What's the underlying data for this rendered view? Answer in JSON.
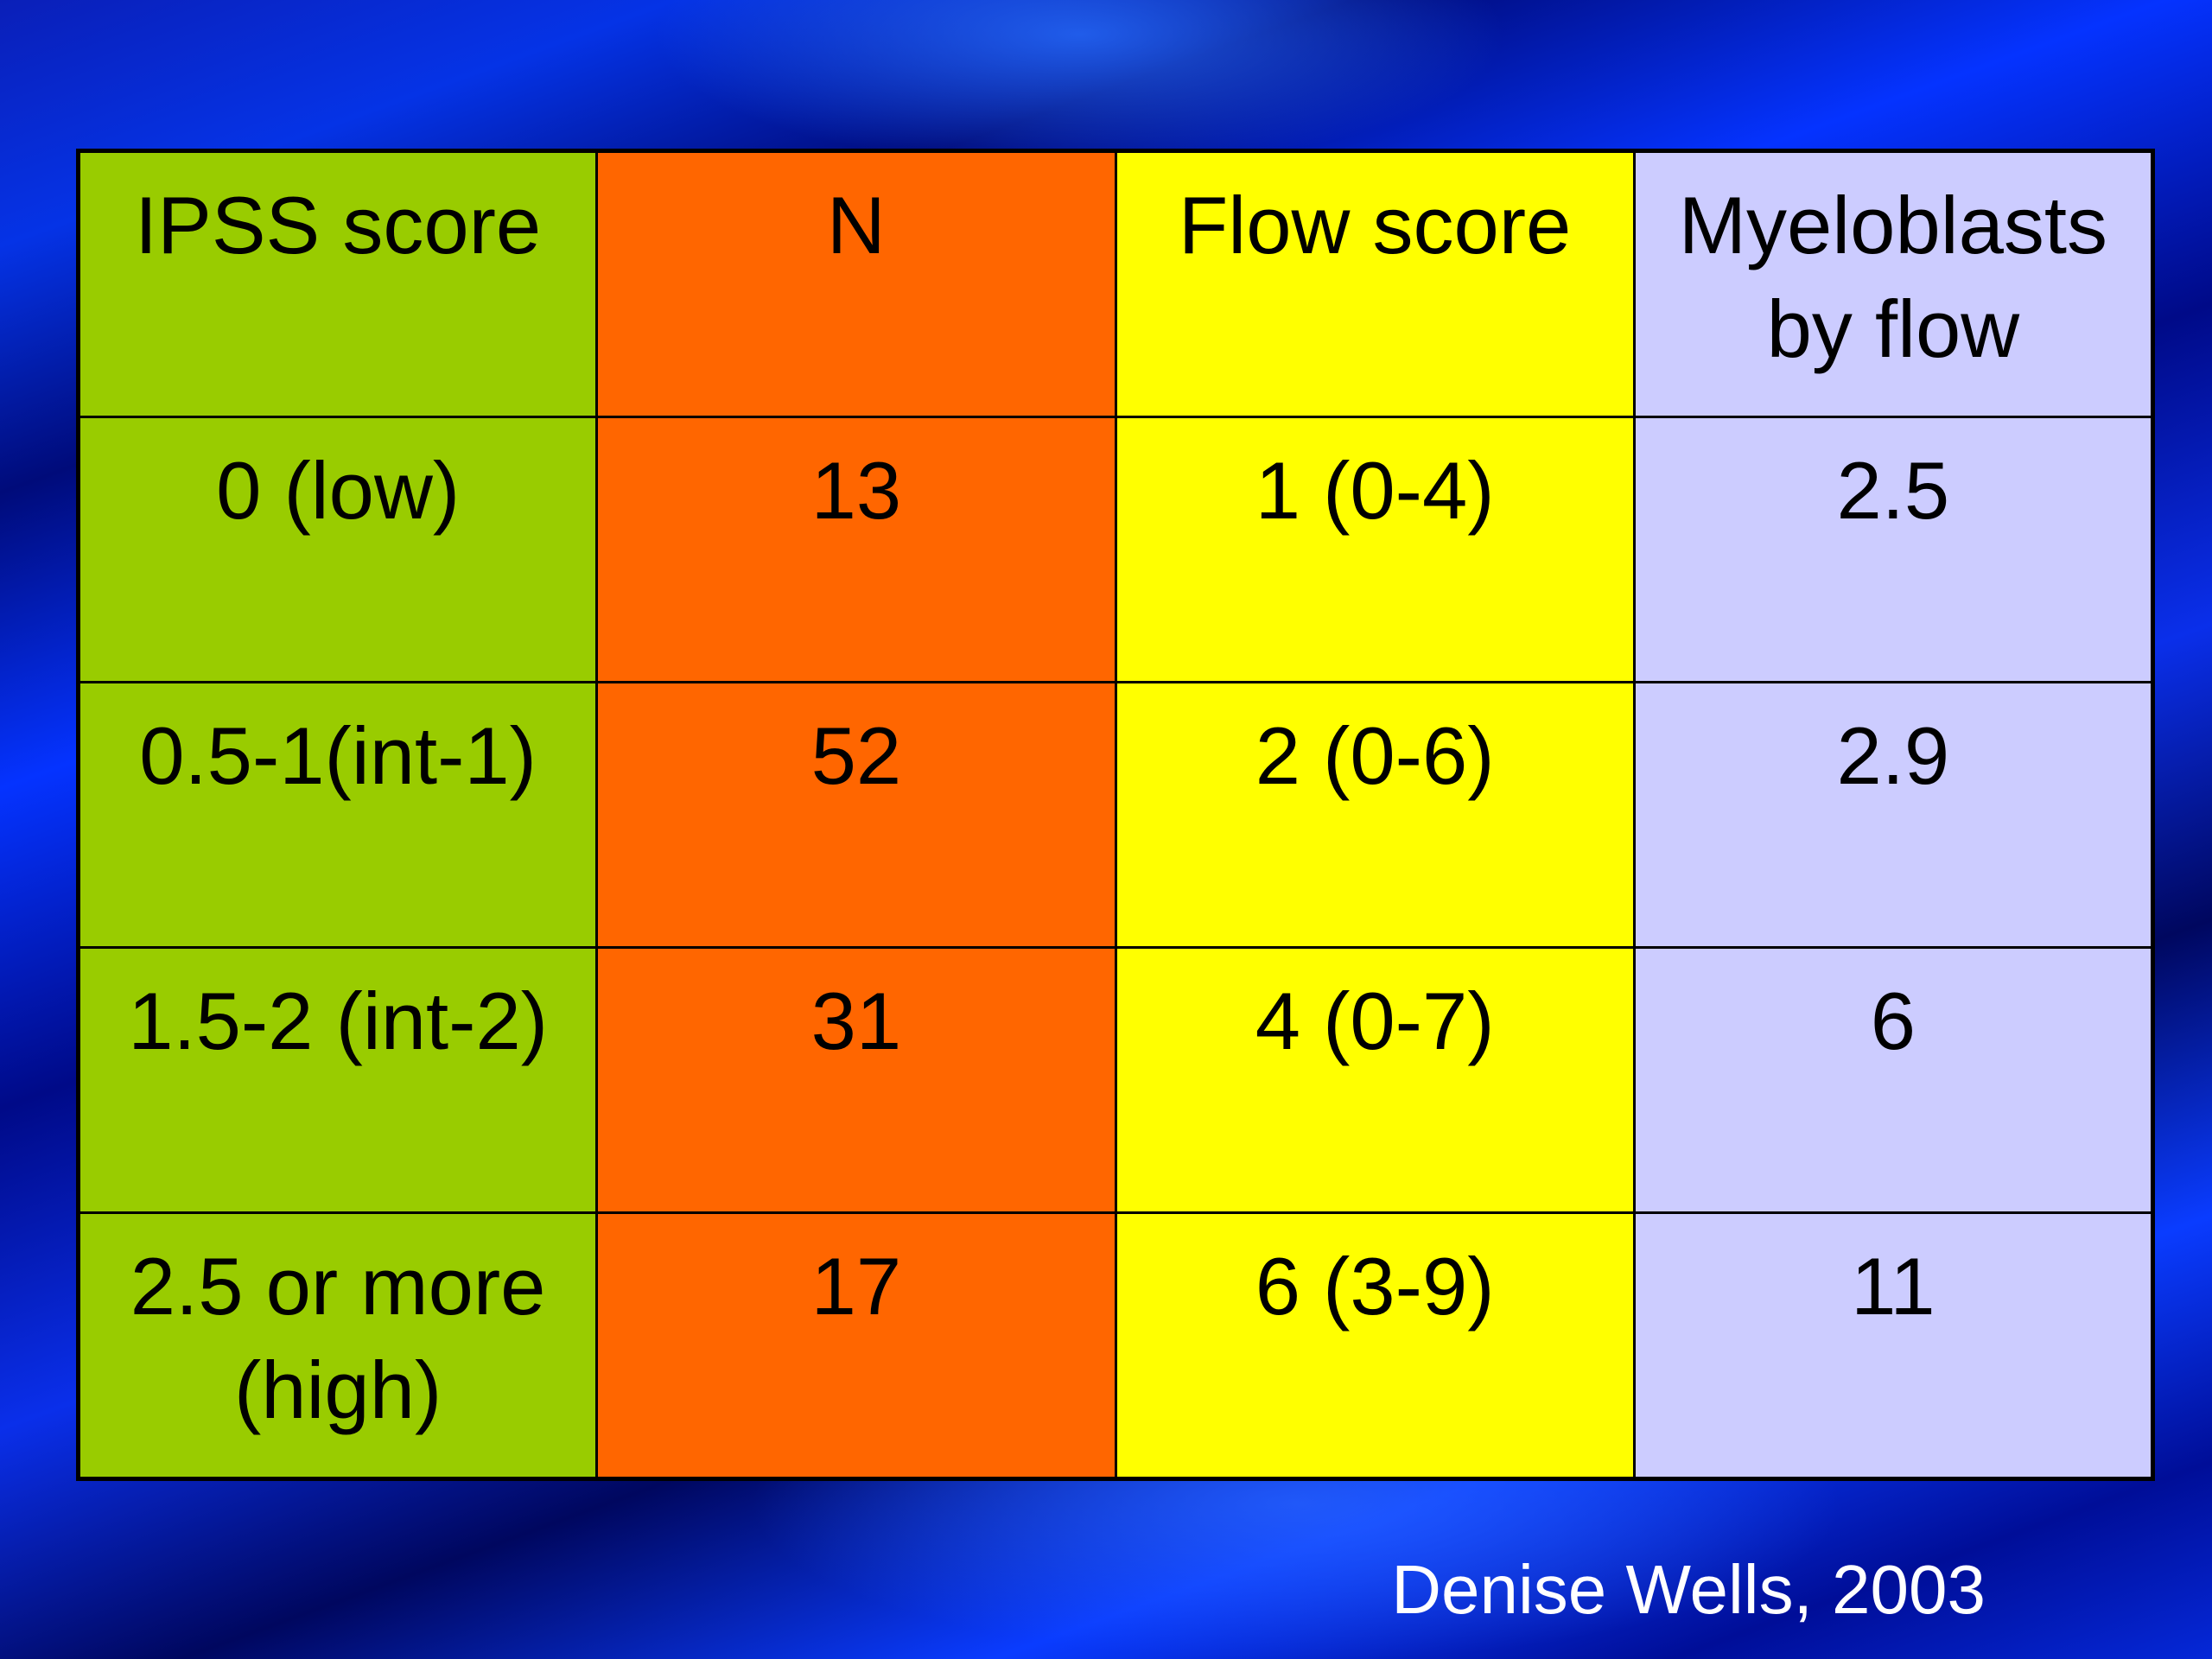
{
  "table": {
    "headers": [
      "IPSS score",
      "N",
      "Flow score",
      "Myeloblasts by flow"
    ],
    "rows": [
      [
        "0 (low)",
        "13",
        "1 (0-4)",
        "2.5"
      ],
      [
        "0.5-1(int-1)",
        "52",
        "2 (0-6)",
        "2.9"
      ],
      [
        "1.5-2 (int-2)",
        "31",
        "4 (0-7)",
        "6"
      ],
      [
        "2.5 or more (high)",
        "17",
        "6 (3-9)",
        "11"
      ]
    ],
    "column_colors": [
      "#99cc00",
      "#ff6600",
      "#ffff00",
      "#ccccff"
    ]
  },
  "citation": "Denise Wells, 2003"
}
